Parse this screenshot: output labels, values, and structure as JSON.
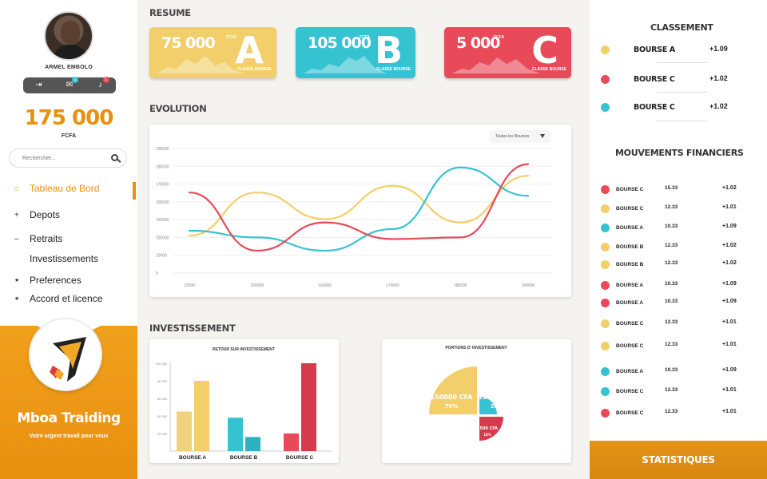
{
  "user": {
    "name": "ARMEL EMBOLO",
    "messages_badge": "1",
    "notifications_badge": "1"
  },
  "balance": {
    "amount": "175 000",
    "currency": "FCFA"
  },
  "search": {
    "placeholder": "Rechercher..."
  },
  "nav": {
    "items": [
      {
        "label": "Tableau de Bord",
        "icon": "home-icon",
        "glyph": "⌂"
      },
      {
        "label": "Depots",
        "icon": "plus-icon",
        "glyph": "+"
      },
      {
        "label": "Retraits",
        "icon": "minus-icon",
        "glyph": "–"
      },
      {
        "label": "Investissements",
        "icon": "",
        "glyph": ""
      },
      {
        "label": "Preferences",
        "icon": "star-icon",
        "glyph": "★"
      },
      {
        "label": "Accord et licence",
        "icon": "star-icon",
        "glyph": "★"
      }
    ]
  },
  "brand": {
    "name": "Mboa Traiding",
    "tagline": "Votre argent travail pour vous"
  },
  "resume": {
    "title": "RESUME",
    "cards": [
      {
        "amount": "75 000",
        "unit": "FCFA",
        "letter": "A",
        "caption": "CLASSE BOURSE",
        "color": "#f2cf6a"
      },
      {
        "amount": "105 000",
        "unit": "FCFA",
        "letter": "B",
        "caption": "CLASSE BOURSE",
        "color": "#36c3d1"
      },
      {
        "amount": "5 000",
        "unit": "FCFA",
        "letter": "C",
        "caption": "CLASSE BOURSE",
        "color": "#e84a5a"
      }
    ]
  },
  "evolution": {
    "title": "EVOLUTION",
    "filter_label": "Toutes les Bourses"
  },
  "investissement": {
    "title": "INVESTISSEMENT",
    "bar_title": "RETOUR SUR INVESTISSEMENT",
    "pie_title": "PORTIONS D' INVESTISSEMENT"
  },
  "chart_data": [
    {
      "type": "line",
      "x": [
        "10000",
        "150000",
        "160000",
        "170000",
        "180000",
        "190000"
      ],
      "ylim": [
        0,
        190000
      ],
      "yticks": [
        "0",
        "10000",
        "150000",
        "155000",
        "165000",
        "175000",
        "180000",
        "190000"
      ],
      "series": [
        {
          "color": "#f2cf6a",
          "values": [
            150000,
            176000,
            160000,
            180000,
            158000,
            186000
          ]
        },
        {
          "color": "#36c3d1",
          "values": [
            153000,
            149000,
            141000,
            154000,
            191000,
            174000
          ]
        },
        {
          "color": "#e84a5a",
          "values": [
            176000,
            141000,
            158000,
            148000,
            149000,
            193000
          ]
        }
      ]
    },
    {
      "type": "bar",
      "title": "RETOUR SUR INVESTISSEMENT",
      "categories": [
        "BOURSE A",
        "BOURSE B",
        "BOURSE C"
      ],
      "ylim": [
        0,
        100000
      ],
      "yticks": [
        "20 000",
        "40 000",
        "60 000",
        "80 000",
        "100 000"
      ],
      "series": [
        {
          "values": [
            45000,
            38000,
            20000
          ],
          "colors": [
            "#f0d27e",
            "#36c3d1",
            "#e84a5a"
          ]
        },
        {
          "values": [
            80000,
            16000,
            100000
          ],
          "colors": [
            "#f2cf6a",
            "#2fb2bf",
            "#d63b4c"
          ]
        }
      ]
    },
    {
      "type": "pie",
      "title": "PORTIONS D' INVESTISSEMENT",
      "slices": [
        {
          "label": "150000 CFA",
          "percent": "70%",
          "value": 70,
          "color": "#f2cf6a"
        },
        {
          "label": "15000 CFA",
          "percent": "20%",
          "value": 20,
          "color": "#36c3d1"
        },
        {
          "label": "7500 CFA",
          "percent": "10%",
          "value": 10,
          "color": "#d63b4c"
        }
      ]
    }
  ],
  "classement": {
    "title": "CLASSEMENT",
    "items": [
      {
        "name": "BOURSE A",
        "value": "+1.09",
        "color": "#f2cf6a"
      },
      {
        "name": "BOURSE C",
        "value": "+1.02",
        "color": "#e84a5a"
      },
      {
        "name": "BOURSE C",
        "value": "+1.02",
        "color": "#36c3d1"
      }
    ]
  },
  "mouvements": {
    "title": "MOUVEMENTS FINANCIERS",
    "items": [
      {
        "name": "BOURSE C",
        "amount": "15.33",
        "delta": "+1.02",
        "color": "#e84a5a"
      },
      {
        "name": "BOURSE C",
        "amount": "12.33",
        "delta": "+1.01",
        "color": "#f2cf6a"
      },
      {
        "name": "BOURSE A",
        "amount": "10.33",
        "delta": "+1.09",
        "color": "#36c3d1"
      },
      {
        "name": "BOURSE B",
        "amount": "12.33",
        "delta": "+1.02",
        "color": "#f2cf6a"
      },
      {
        "name": "BOURSE B",
        "amount": "12.33",
        "delta": "+1.02",
        "color": "#f2cf6a"
      },
      {
        "name": "BOURSE A",
        "amount": "10.33",
        "delta": "+1.09",
        "color": "#e84a5a"
      },
      {
        "name": "BOURSE A",
        "amount": "10.33",
        "delta": "+1.09",
        "color": "#e84a5a"
      },
      {
        "name": "BOURSE C",
        "amount": "12.33",
        "delta": "+1.01",
        "color": "#f2cf6a"
      },
      {
        "name": "BOURSE C",
        "amount": "12.33",
        "delta": "+1.01",
        "color": "#f2cf6a"
      },
      {
        "name": "BOURSE A",
        "amount": "10.33",
        "delta": "+1.09",
        "color": "#36c3d1"
      },
      {
        "name": "BOURSE C",
        "amount": "12.33",
        "delta": "+1.01",
        "color": "#36c3d1"
      },
      {
        "name": "BOURSE C",
        "amount": "12.33",
        "delta": "+1.01",
        "color": "#e84a5a"
      }
    ]
  },
  "stats_button": "STATISTIQUES"
}
